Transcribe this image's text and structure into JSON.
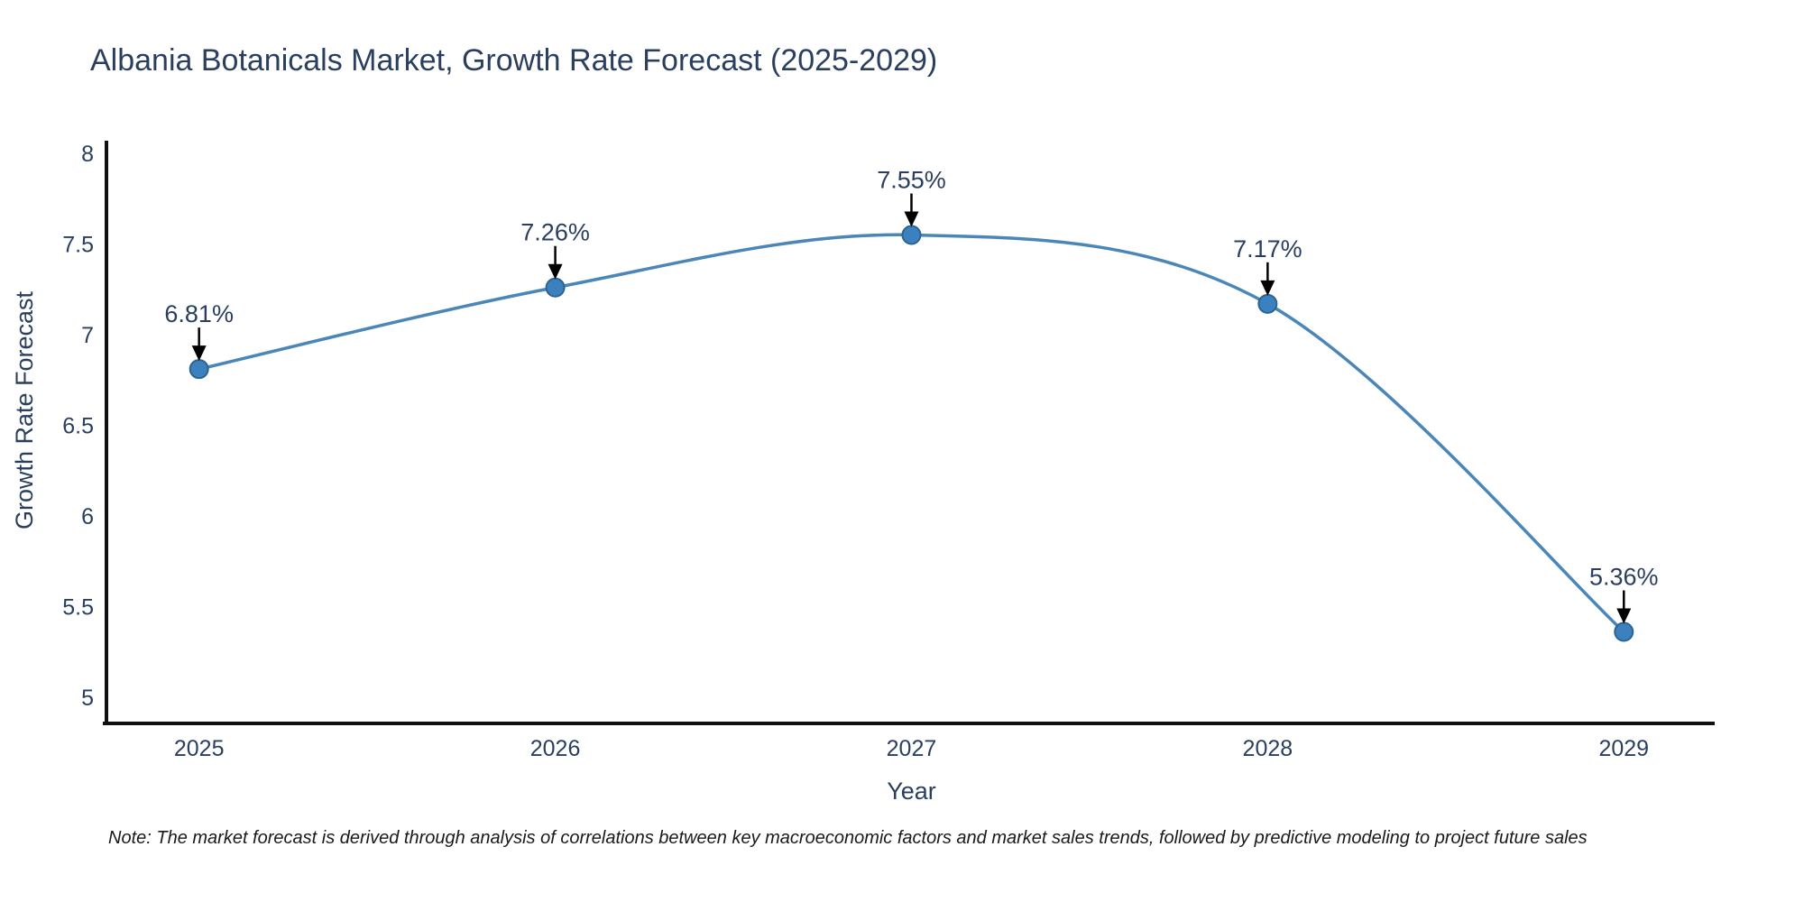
{
  "figure": {
    "title": "Albania Botanicals Market, Growth Rate Forecast (2025-2029)",
    "note": "Note: The market forecast is derived through analysis of correlations between key macroeconomic factors and market sales trends, followed by predictive modeling to project future sales"
  },
  "chart_data": {
    "type": "line",
    "title": "Albania Botanicals Market, Growth Rate Forecast (2025-2029)",
    "x": [
      2025,
      2026,
      2027,
      2028,
      2029
    ],
    "x_labels": [
      "2025",
      "2026",
      "2027",
      "2028",
      "2029"
    ],
    "series": [
      {
        "name": "Growth Rate Forecast",
        "values": [
          6.81,
          7.26,
          7.55,
          7.17,
          5.36
        ]
      }
    ],
    "point_labels": [
      "6.81%",
      "7.26%",
      "7.55%",
      "7.17%",
      "5.36%"
    ],
    "xlabel": "Year",
    "ylabel": "Growth Rate Forecast",
    "yticks": [
      5,
      5.5,
      6,
      6.5,
      7,
      7.5,
      8
    ],
    "ytick_labels": [
      "5",
      "5.5",
      "6",
      "6.5",
      "7",
      "7.5",
      "8"
    ],
    "xlim": [
      2024.74,
      2029.25
    ],
    "ylim": [
      4.855,
      8.06
    ],
    "grid": false,
    "legend": false,
    "line_shape": "spline",
    "colors": {
      "line": "#4a86b8",
      "marker_fill": "#3b80bf",
      "marker_edge": "#2d648f",
      "axis_line": "#111111",
      "tick_text": "#2a3f5f",
      "axis_title_text": "#2a3f5f",
      "annotation_text": "#2a3f5f",
      "arrow": "#000000",
      "background": "#ffffff"
    }
  }
}
